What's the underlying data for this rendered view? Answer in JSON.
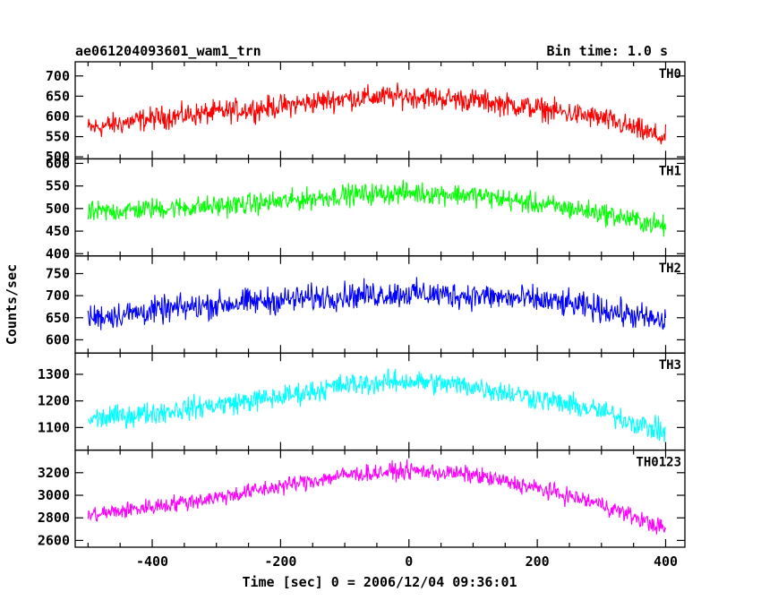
{
  "title": "ae061204093601_wam1_trn",
  "bin_time_label": "Bin time: 1.0 s",
  "colors": {
    "TH0": "#ff0000",
    "TH1": "#00ff00",
    "TH2": "#0000ff",
    "TH3": "#00ffff",
    "TH0123": "#ff00ff"
  },
  "chart_data": {
    "type": "line",
    "title": "ae061204093601_wam1_trn",
    "subtitle": "Bin time: 1.0 s",
    "xlabel": "Time [sec] 0 = 2006/12/04 09:36:01",
    "ylabel": "Counts/sec",
    "xlim": [
      -520,
      430
    ],
    "x_range_data": [
      -500,
      400
    ],
    "bin_time": 1.0,
    "grid": false,
    "x_ticks": [
      -400,
      -200,
      0,
      200,
      400
    ],
    "panels": [
      {
        "name": "TH0",
        "color": "#ff0000",
        "ylim": [
          495,
          735
        ],
        "yticks": [
          500,
          550,
          600,
          650,
          700
        ],
        "trend": {
          "x": [
            -500,
            -400,
            -300,
            -200,
            -100,
            0,
            100,
            200,
            300,
            400
          ],
          "y": [
            570,
            595,
            610,
            625,
            645,
            650,
            640,
            620,
            595,
            545
          ]
        },
        "noise_amplitude": 30
      },
      {
        "name": "TH1",
        "color": "#00ff00",
        "ylim": [
          395,
          610
        ],
        "yticks": [
          400,
          450,
          500,
          550,
          600
        ],
        "trend": {
          "x": [
            -500,
            -400,
            -300,
            -200,
            -100,
            0,
            100,
            200,
            300,
            400
          ],
          "y": [
            490,
            500,
            505,
            515,
            530,
            535,
            530,
            510,
            490,
            460
          ]
        },
        "noise_amplitude": 25
      },
      {
        "name": "TH2",
        "color": "#0000ff",
        "ylim": [
          570,
          790
        ],
        "yticks": [
          600,
          650,
          700,
          750
        ],
        "trend": {
          "x": [
            -500,
            -400,
            -300,
            -200,
            -100,
            0,
            100,
            200,
            300,
            400
          ],
          "y": [
            650,
            665,
            680,
            690,
            700,
            705,
            700,
            690,
            670,
            640
          ]
        },
        "noise_amplitude": 32
      },
      {
        "name": "TH3",
        "color": "#00ffff",
        "ylim": [
          1015,
          1380
        ],
        "yticks": [
          1100,
          1200,
          1300
        ],
        "trend": {
          "x": [
            -500,
            -400,
            -300,
            -200,
            -100,
            0,
            100,
            200,
            300,
            400
          ],
          "y": [
            1130,
            1155,
            1185,
            1215,
            1260,
            1275,
            1255,
            1210,
            1160,
            1080
          ]
        },
        "noise_amplitude": 45
      },
      {
        "name": "TH0123",
        "color": "#ff00ff",
        "ylim": [
          2540,
          3400
        ],
        "yticks": [
          2600,
          2800,
          3000,
          3200
        ],
        "trend": {
          "x": [
            -500,
            -400,
            -300,
            -200,
            -100,
            0,
            100,
            200,
            300,
            400
          ],
          "y": [
            2820,
            2900,
            2980,
            3080,
            3180,
            3220,
            3180,
            3060,
            2920,
            2700
          ]
        },
        "noise_amplitude": 80
      }
    ]
  }
}
